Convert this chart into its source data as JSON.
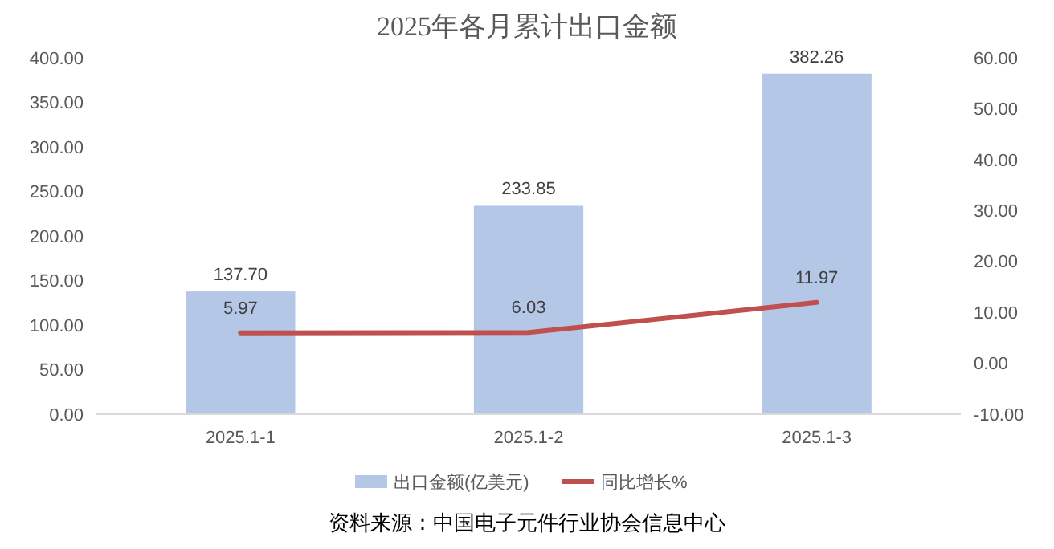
{
  "chart_data": {
    "type": "bar",
    "title": "2025年各月累计出口金额",
    "categories": [
      "2025.1-1",
      "2025.1-2",
      "2025.1-3"
    ],
    "series": [
      {
        "name": "出口金额(亿美元)",
        "color": "#b4c7e7",
        "values": [
          137.7,
          233.85,
          382.26
        ],
        "value_labels": [
          "137.70",
          "233.85",
          "382.26"
        ]
      },
      {
        "name": "同比增长%",
        "type": "line",
        "axis": "y2",
        "color": "#c0504d",
        "values": [
          5.97,
          6.03,
          11.97
        ],
        "value_labels": [
          "5.97",
          "6.03",
          "11.97"
        ]
      }
    ],
    "ylim": [
      0,
      400
    ],
    "yticks": [
      {
        "value": 0,
        "label": "0.00"
      },
      {
        "value": 50,
        "label": "50.00"
      },
      {
        "value": 100,
        "label": "100.00"
      },
      {
        "value": 150,
        "label": "150.00"
      },
      {
        "value": 200,
        "label": "200.00"
      },
      {
        "value": 250,
        "label": "250.00"
      },
      {
        "value": 300,
        "label": "300.00"
      },
      {
        "value": 350,
        "label": "350.00"
      },
      {
        "value": 400,
        "label": "400.00"
      }
    ],
    "y2lim": [
      -10,
      60
    ],
    "y2ticks": [
      {
        "value": -10,
        "label": "-10.00"
      },
      {
        "value": 0,
        "label": "0.00"
      },
      {
        "value": 10,
        "label": "10.00"
      },
      {
        "value": 20,
        "label": "20.00"
      },
      {
        "value": 30,
        "label": "30.00"
      },
      {
        "value": 40,
        "label": "40.00"
      },
      {
        "value": 50,
        "label": "50.00"
      },
      {
        "value": 60,
        "label": "60.00"
      }
    ],
    "legend": "bottom",
    "annotations": [
      "资料来源：中国电子元件行业协会信息中心"
    ]
  }
}
